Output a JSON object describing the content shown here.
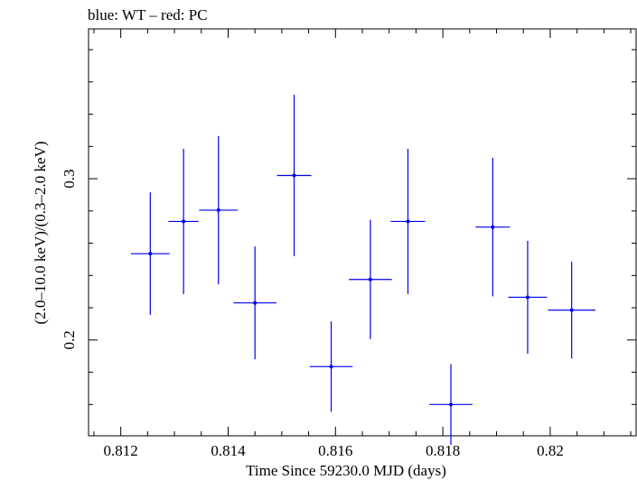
{
  "chart_data": {
    "type": "scatter",
    "title": "blue: WT – red: PC",
    "xlabel": "Time Since 59230.0 MJD (days)",
    "ylabel": "(2.0–10.0 keV)/(0.3–2.0 keV)",
    "xlim": [
      0.8114,
      0.8216
    ],
    "ylim": [
      0.1406,
      0.3929
    ],
    "x_ticks": [
      0.812,
      0.814,
      0.816,
      0.818,
      0.82
    ],
    "x_tick_labels": [
      "0.812",
      "0.814",
      "0.816",
      "0.818",
      "0.82"
    ],
    "y_ticks": [
      0.2,
      0.3
    ],
    "y_tick_labels": [
      "0.2",
      "0.3"
    ],
    "grid": false,
    "series": [
      {
        "color": "#0000ee",
        "points": [
          {
            "x": 0.81255,
            "y": 0.2535,
            "xerr": 0.00036,
            "yerr": 0.038
          },
          {
            "x": 0.81317,
            "y": 0.2735,
            "xerr": 0.00028,
            "yerr": 0.045
          },
          {
            "x": 0.81382,
            "y": 0.2805,
            "xerr": 0.00036,
            "yerr": 0.046
          },
          {
            "x": 0.8145,
            "y": 0.223,
            "xerr": 0.0004,
            "yerr": 0.035
          },
          {
            "x": 0.81523,
            "y": 0.302,
            "xerr": 0.00032,
            "yerr": 0.05
          },
          {
            "x": 0.81592,
            "y": 0.1835,
            "xerr": 0.0004,
            "yerr": 0.028
          },
          {
            "x": 0.81665,
            "y": 0.2375,
            "xerr": 0.0004,
            "yerr": 0.037
          },
          {
            "x": 0.81735,
            "y": 0.2735,
            "xerr": 0.00032,
            "yerr": 0.045
          },
          {
            "x": 0.81815,
            "y": 0.16,
            "xerr": 0.0004,
            "yerr": 0.025
          },
          {
            "x": 0.81893,
            "y": 0.27,
            "xerr": 0.00032,
            "yerr": 0.043
          },
          {
            "x": 0.81958,
            "y": 0.2265,
            "xerr": 0.00036,
            "yerr": 0.035
          },
          {
            "x": 0.8204,
            "y": 0.2185,
            "xerr": 0.00044,
            "yerr": 0.03
          }
        ]
      }
    ]
  }
}
